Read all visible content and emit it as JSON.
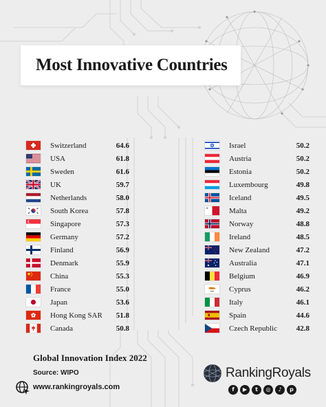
{
  "title": "Most Innovative Countries",
  "left_column": [
    {
      "country": "Switzerland",
      "score": "64.6",
      "flag": "ch"
    },
    {
      "country": "USA",
      "score": "61.8",
      "flag": "us"
    },
    {
      "country": "Sweden",
      "score": "61.6",
      "flag": "se"
    },
    {
      "country": "UK",
      "score": "59.7",
      "flag": "gb"
    },
    {
      "country": "Netherlands",
      "score": "58.0",
      "flag": "nl"
    },
    {
      "country": "South Korea",
      "score": "57.8",
      "flag": "kr"
    },
    {
      "country": "Singapore",
      "score": "57.3",
      "flag": "sg"
    },
    {
      "country": "Germany",
      "score": "57.2",
      "flag": "de"
    },
    {
      "country": "Finland",
      "score": "56.9",
      "flag": "fi"
    },
    {
      "country": "Denmark",
      "score": "55.9",
      "flag": "dk"
    },
    {
      "country": "China",
      "score": "55.3",
      "flag": "cn"
    },
    {
      "country": "France",
      "score": "55.0",
      "flag": "fr"
    },
    {
      "country": "Japan",
      "score": "53.6",
      "flag": "jp"
    },
    {
      "country": "Hong Kong SAR",
      "score": "51.8",
      "flag": "hk"
    },
    {
      "country": "Canada",
      "score": "50.8",
      "flag": "ca"
    }
  ],
  "right_column": [
    {
      "country": "Israel",
      "score": "50.2",
      "flag": "il"
    },
    {
      "country": "Austria",
      "score": "50.2",
      "flag": "at"
    },
    {
      "country": "Estonia",
      "score": "50.2",
      "flag": "ee"
    },
    {
      "country": "Luxembourg",
      "score": "49.8",
      "flag": "lu"
    },
    {
      "country": "Iceland",
      "score": "49.5",
      "flag": "is"
    },
    {
      "country": "Malta",
      "score": "49.2",
      "flag": "mt"
    },
    {
      "country": "Norway",
      "score": "48.8",
      "flag": "no"
    },
    {
      "country": "Ireland",
      "score": "48.5",
      "flag": "ie"
    },
    {
      "country": "New Zealand",
      "score": "47.2",
      "flag": "nz"
    },
    {
      "country": "Australia",
      "score": "47.1",
      "flag": "au"
    },
    {
      "country": "Belgium",
      "score": "46.9",
      "flag": "be"
    },
    {
      "country": "Cyprus",
      "score": "46.2",
      "flag": "cy"
    },
    {
      "country": "Italy",
      "score": "46.1",
      "flag": "it"
    },
    {
      "country": "Spain",
      "score": "44.6",
      "flag": "es"
    },
    {
      "country": "Czech Republic",
      "score": "42.8",
      "flag": "cz"
    }
  ],
  "footer": {
    "index_title": "Global Innovation Index 2022",
    "source": "Source: WIPO",
    "website": "www.rankingroyals.com",
    "brand": "RankingRoyals",
    "social_icons": [
      "facebook-icon",
      "youtube-icon",
      "twitter-icon",
      "instagram-icon",
      "tiktok-icon",
      "pinterest-icon"
    ]
  },
  "colors": {
    "background": "#ededed",
    "title_band": "#ffffff",
    "text": "#1a1a1a"
  }
}
